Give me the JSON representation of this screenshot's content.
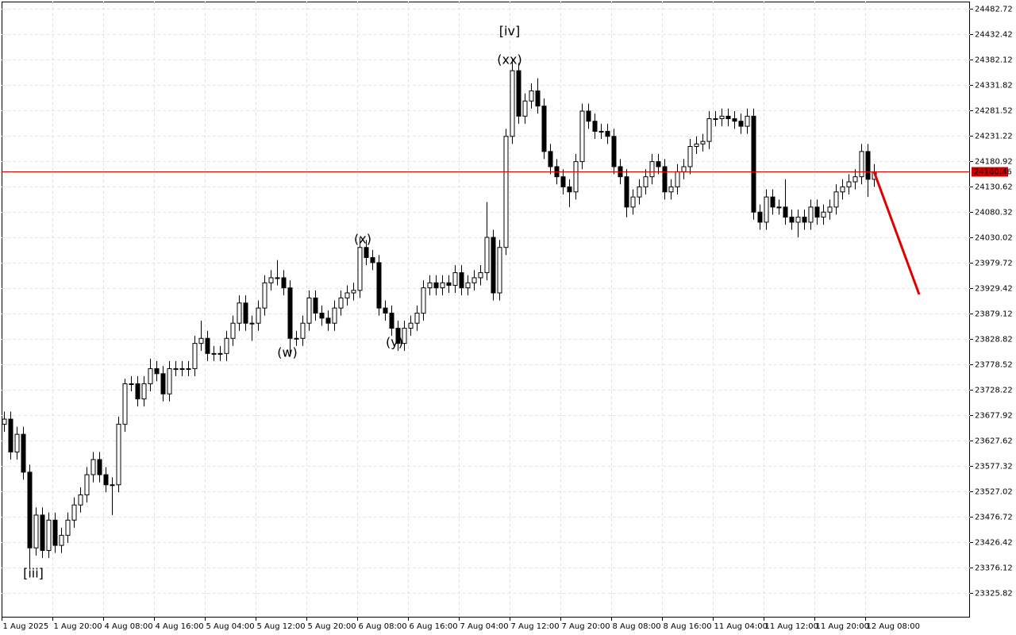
{
  "chart_data": {
    "type": "candlestick",
    "categories": [
      "1 Aug 2025",
      null,
      null,
      null,
      null,
      null,
      null,
      null,
      "1 Aug 20:00",
      null,
      null,
      null,
      null,
      null,
      null,
      null,
      "4 Aug 08:00",
      null,
      null,
      null,
      null,
      null,
      null,
      null,
      "4 Aug 16:00",
      null,
      null,
      null,
      null,
      null,
      null,
      null,
      "5 Aug 04:00",
      null,
      null,
      null,
      null,
      null,
      null,
      null,
      "5 Aug 12:00",
      null,
      null,
      null,
      null,
      null,
      null,
      null,
      "5 Aug 20:00",
      null,
      null,
      null,
      null,
      null,
      null,
      null,
      "6 Aug 08:00",
      null,
      null,
      null,
      null,
      null,
      null,
      null,
      "6 Aug 16:00",
      null,
      null,
      null,
      null,
      null,
      null,
      null,
      "7 Aug 04:00",
      null,
      null,
      null,
      null,
      null,
      null,
      null,
      "7 Aug 12:00",
      null,
      null,
      null,
      null,
      null,
      null,
      null,
      "7 Aug 20:00",
      null,
      null,
      null,
      null,
      null,
      null,
      null,
      "8 Aug 08:00",
      null,
      null,
      null,
      null,
      null,
      null,
      null,
      "8 Aug 16:00",
      null,
      null,
      null,
      null,
      null,
      null,
      null,
      "11 Aug 04:00",
      null,
      null,
      null,
      null,
      null,
      null,
      null,
      "11 Aug 12:00",
      null,
      null,
      null,
      null,
      null,
      null,
      null,
      "11 Aug 20:00",
      null,
      null,
      null,
      null,
      null,
      null,
      null,
      "12 Aug 08:00",
      null
    ],
    "open": [
      23660,
      23670,
      23605,
      23640,
      23565,
      23415,
      23480,
      23410,
      23470,
      23420,
      23440,
      23470,
      23500,
      23520,
      23560,
      23590,
      23560,
      23540,
      23540,
      23660,
      23740,
      23740,
      23710,
      23740,
      23770,
      23760,
      23720,
      23770,
      23770,
      23770,
      23770,
      23820,
      23830,
      23800,
      23800,
      23800,
      23830,
      23860,
      23900,
      23860,
      23860,
      23890,
      23940,
      23950,
      23950,
      23930,
      23830,
      23830,
      23860,
      23910,
      23880,
      23870,
      23860,
      23890,
      23910,
      23920,
      23925,
      24010,
      23990,
      23980,
      23890,
      23880,
      23850,
      23820,
      23850,
      23860,
      23880,
      23930,
      23940,
      23930,
      23940,
      23935,
      23960,
      23930,
      23940,
      23950,
      23960,
      24030,
      23920,
      24010,
      24230,
      24360,
      24270,
      24300,
      24320,
      24290,
      24200,
      24170,
      24150,
      24130,
      24120,
      24180,
      24280,
      24260,
      24240,
      24240,
      24230,
      24170,
      24150,
      24090,
      24110,
      24130,
      24150,
      24180,
      24170,
      24120,
      24130,
      24160,
      24170,
      24210,
      24215,
      24220,
      24265,
      24265,
      24270,
      24265,
      24260,
      24250,
      24270,
      24080,
      24060,
      24110,
      24090,
      24090,
      24070,
      24060,
      24070,
      24060,
      24090,
      24070,
      24080,
      24090,
      24120,
      24130,
      24140,
      24150,
      24200,
      24145
    ],
    "high": [
      23685,
      23685,
      23655,
      23655,
      23580,
      23495,
      23495,
      23485,
      23485,
      23455,
      23485,
      23515,
      23535,
      23575,
      23605,
      23605,
      23575,
      23555,
      23675,
      23750,
      23755,
      23755,
      23755,
      23790,
      23785,
      23775,
      23785,
      23785,
      23785,
      23785,
      23835,
      23865,
      23845,
      23815,
      23815,
      23845,
      23875,
      23915,
      23915,
      23875,
      23905,
      23955,
      23965,
      23985,
      23965,
      23945,
      23845,
      23875,
      23925,
      23925,
      23895,
      23885,
      23905,
      23925,
      23935,
      23940,
      24030,
      24025,
      24005,
      23995,
      23905,
      23895,
      23865,
      23865,
      23875,
      23895,
      23945,
      23955,
      23955,
      23955,
      23955,
      23975,
      23975,
      23955,
      23965,
      23975,
      24100,
      24045,
      24025,
      24245,
      24385,
      24375,
      24315,
      24335,
      24345,
      24305,
      24215,
      24185,
      24165,
      24145,
      24195,
      24295,
      24295,
      24275,
      24255,
      24255,
      24245,
      24185,
      24165,
      24125,
      24145,
      24165,
      24195,
      24195,
      24185,
      24145,
      24175,
      24185,
      24225,
      24230,
      24235,
      24280,
      24280,
      24285,
      24285,
      24280,
      24275,
      24285,
      24285,
      24095,
      24125,
      24125,
      24105,
      24145,
      24085,
      24085,
      24085,
      24105,
      24105,
      24095,
      24105,
      24135,
      24145,
      24155,
      24165,
      24215,
      24215,
      24175
    ],
    "low": [
      23645,
      23590,
      23590,
      23550,
      23375,
      23400,
      23395,
      23395,
      23405,
      23405,
      23425,
      23455,
      23485,
      23505,
      23545,
      23545,
      23525,
      23480,
      23525,
      23645,
      23725,
      23695,
      23695,
      23725,
      23745,
      23705,
      23705,
      23755,
      23755,
      23755,
      23755,
      23805,
      23785,
      23785,
      23785,
      23785,
      23815,
      23845,
      23845,
      23825,
      23845,
      23875,
      23925,
      23935,
      23915,
      23800,
      23815,
      23815,
      23845,
      23865,
      23855,
      23845,
      23845,
      23875,
      23895,
      23905,
      23910,
      23975,
      23965,
      23875,
      23865,
      23835,
      23805,
      23805,
      23835,
      23845,
      23865,
      23915,
      23915,
      23915,
      23920,
      23920,
      23915,
      23915,
      23925,
      23935,
      23945,
      23905,
      23905,
      23995,
      24215,
      24255,
      24255,
      24285,
      24275,
      24185,
      24155,
      24135,
      24115,
      24090,
      24105,
      24165,
      24245,
      24225,
      24225,
      24215,
      24155,
      24135,
      24070,
      24075,
      24095,
      24115,
      24135,
      24155,
      24105,
      24105,
      24115,
      24145,
      24155,
      24195,
      24200,
      24205,
      24250,
      24250,
      24250,
      24245,
      24235,
      24235,
      24065,
      24045,
      24045,
      24075,
      24075,
      24055,
      24045,
      24030,
      24045,
      24045,
      24055,
      24055,
      24065,
      24075,
      24105,
      24115,
      24125,
      24135,
      24110,
      24130
    ],
    "close": [
      23670,
      23605,
      23640,
      23565,
      23415,
      23480,
      23410,
      23470,
      23420,
      23440,
      23470,
      23500,
      23520,
      23560,
      23590,
      23560,
      23540,
      23540,
      23660,
      23740,
      23740,
      23710,
      23740,
      23770,
      23760,
      23720,
      23770,
      23770,
      23770,
      23770,
      23820,
      23830,
      23800,
      23800,
      23800,
      23830,
      23860,
      23900,
      23860,
      23860,
      23890,
      23940,
      23950,
      23950,
      23930,
      23830,
      23830,
      23860,
      23910,
      23880,
      23870,
      23860,
      23890,
      23910,
      23920,
      23925,
      24010,
      23990,
      23980,
      23890,
      23880,
      23850,
      23820,
      23850,
      23860,
      23880,
      23930,
      23940,
      23930,
      23940,
      23935,
      23960,
      23930,
      23940,
      23950,
      23960,
      24030,
      23920,
      24010,
      24230,
      24360,
      24270,
      24300,
      24320,
      24290,
      24200,
      24170,
      24150,
      24130,
      24120,
      24180,
      24280,
      24260,
      24240,
      24240,
      24230,
      24170,
      24150,
      24090,
      24110,
      24130,
      24150,
      24180,
      24170,
      24120,
      24130,
      24160,
      24170,
      24210,
      24215,
      24220,
      24265,
      24265,
      24270,
      24265,
      24260,
      24250,
      24270,
      24080,
      24060,
      24110,
      24090,
      24090,
      24070,
      24060,
      24070,
      24060,
      24090,
      24070,
      24080,
      24090,
      24120,
      24130,
      24140,
      24150,
      24200,
      24145,
      24160
    ],
    "up_color": "#ffffff",
    "down_color": "#000000",
    "ylim": [
      23277.1,
      24496.9
    ],
    "yticks": [
      24482.72,
      24432.42,
      24382.12,
      24331.82,
      24281.52,
      24231.22,
      24180.92,
      24130.62,
      24080.32,
      24030.02,
      23979.72,
      23929.42,
      23879.12,
      23828.82,
      23778.52,
      23728.22,
      23677.92,
      23627.62,
      23577.32,
      23527.02,
      23476.72,
      23426.42,
      23376.12,
      23325.82
    ],
    "grid": true,
    "current_price": 24160.46,
    "current_price_color": "#cc0000",
    "forecast": {
      "values": [
        24160.46,
        23917
      ],
      "color": "#e00000"
    },
    "annotations": [
      {
        "text": "[iii]",
        "color": "#33bb33"
      },
      {
        "text": "(w)",
        "color": "#1a1acc"
      },
      {
        "text": "(x)",
        "color": "#1a1acc"
      },
      {
        "text": "(y)",
        "color": "#1a1acc"
      },
      {
        "text": "(xx)",
        "color": "#1a1acc"
      },
      {
        "text": "[iv]",
        "color": "#33bb33"
      }
    ]
  }
}
